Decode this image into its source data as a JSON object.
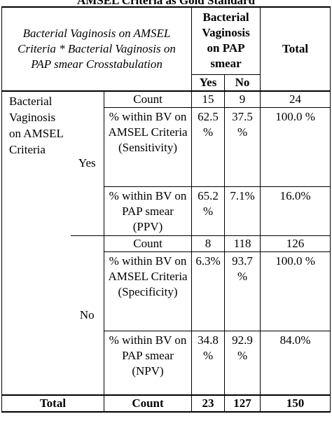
{
  "doc_title": "AMSEL Criteria as Gold Standard",
  "header": {
    "crosstab_title": "Bacterial Vaginosis on AMSEL Criteria * Bacterial Vaginosis on PAP smear Crosstabulation",
    "col_group_label": "Bacterial Vaginosis on PAP smear",
    "col_yes": "Yes",
    "col_no": "No",
    "col_total": "Total"
  },
  "row_group_label": "Bacterial Vaginosis on AMSEL Criteria",
  "yes_group": {
    "label": "Yes",
    "rows": [
      {
        "stat": "Count",
        "yes": "15",
        "no": "9",
        "total": "24"
      },
      {
        "stat": "% within BV on AMSEL Criteria (Sensitivity)",
        "yes": "62.5 %",
        "no": "37.5 %",
        "total": "100.0 %"
      },
      {
        "stat": "% within BV on PAP smear (PPV)",
        "yes": "65.2 %",
        "no": "7.1%",
        "total": "16.0%"
      }
    ]
  },
  "no_group": {
    "label": "No",
    "rows": [
      {
        "stat": "Count",
        "yes": "8",
        "no": "118",
        "total": "126"
      },
      {
        "stat": "% within BV on AMSEL Criteria (Specificity)",
        "yes": "6.3%",
        "no": "93.7 %",
        "total": "100.0 %"
      },
      {
        "stat": "% within BV on PAP smear (NPV)",
        "yes": "34.8 %",
        "no": "92.9 %",
        "total": "84.0%"
      }
    ]
  },
  "total_row": {
    "label": "Total",
    "stat": "Count",
    "yes": "23",
    "no": "127",
    "total": "150"
  }
}
